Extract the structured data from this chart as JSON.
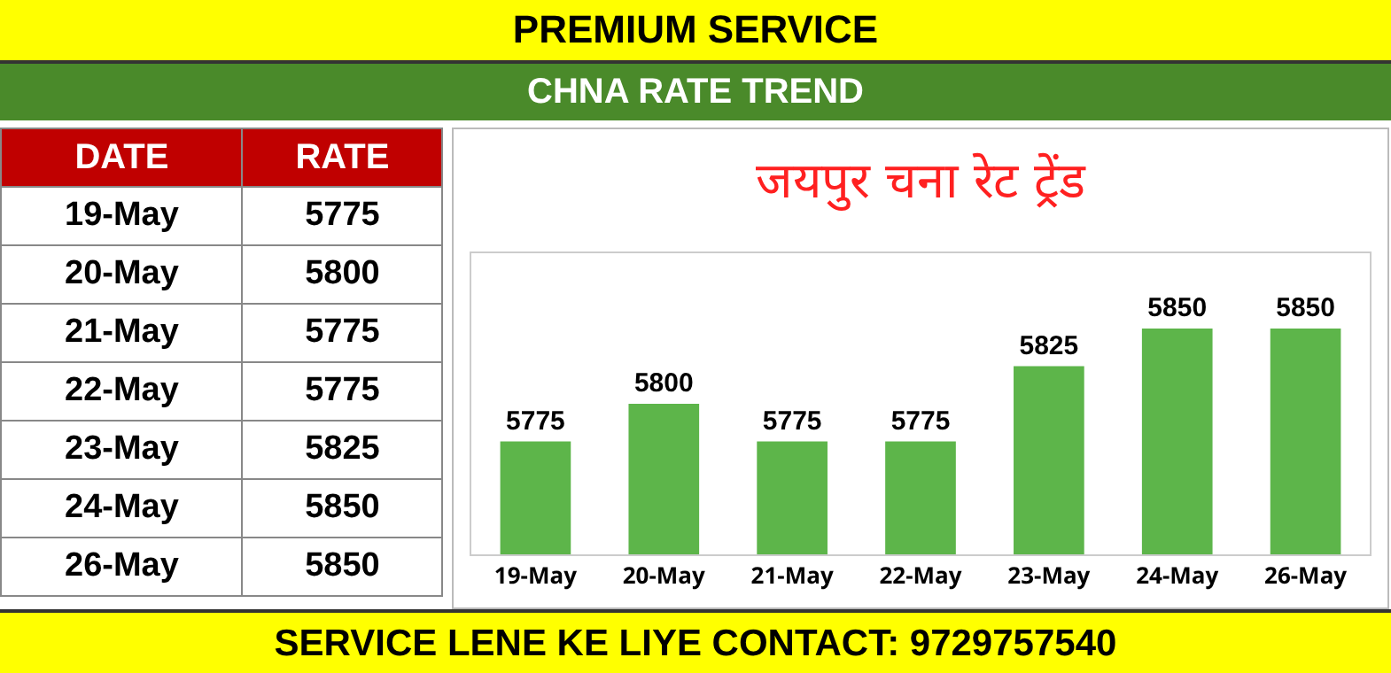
{
  "chart_data": {
    "type": "bar",
    "title": "जयपुर चना रेट ट्रेंड",
    "subtitle": "CHNA RATE TREND",
    "annotations": [
      "PREMIUM SERVICE",
      "SERVICE LENE KE LIYE CONTACT: 9729757540",
      "DATE",
      "RATE"
    ],
    "categories": [
      "19-May",
      "20-May",
      "21-May",
      "22-May",
      "23-May",
      "24-May",
      "26-May"
    ],
    "values": [
      5775,
      5800,
      5775,
      5775,
      5825,
      5850,
      5850
    ],
    "value_labels": [
      "5775",
      "5800",
      "5775",
      "5775",
      "5825",
      "5850",
      "5850"
    ],
    "color": "#5db54a",
    "ylim": [
      5700,
      5900
    ],
    "grid": false,
    "legend": false
  }
}
